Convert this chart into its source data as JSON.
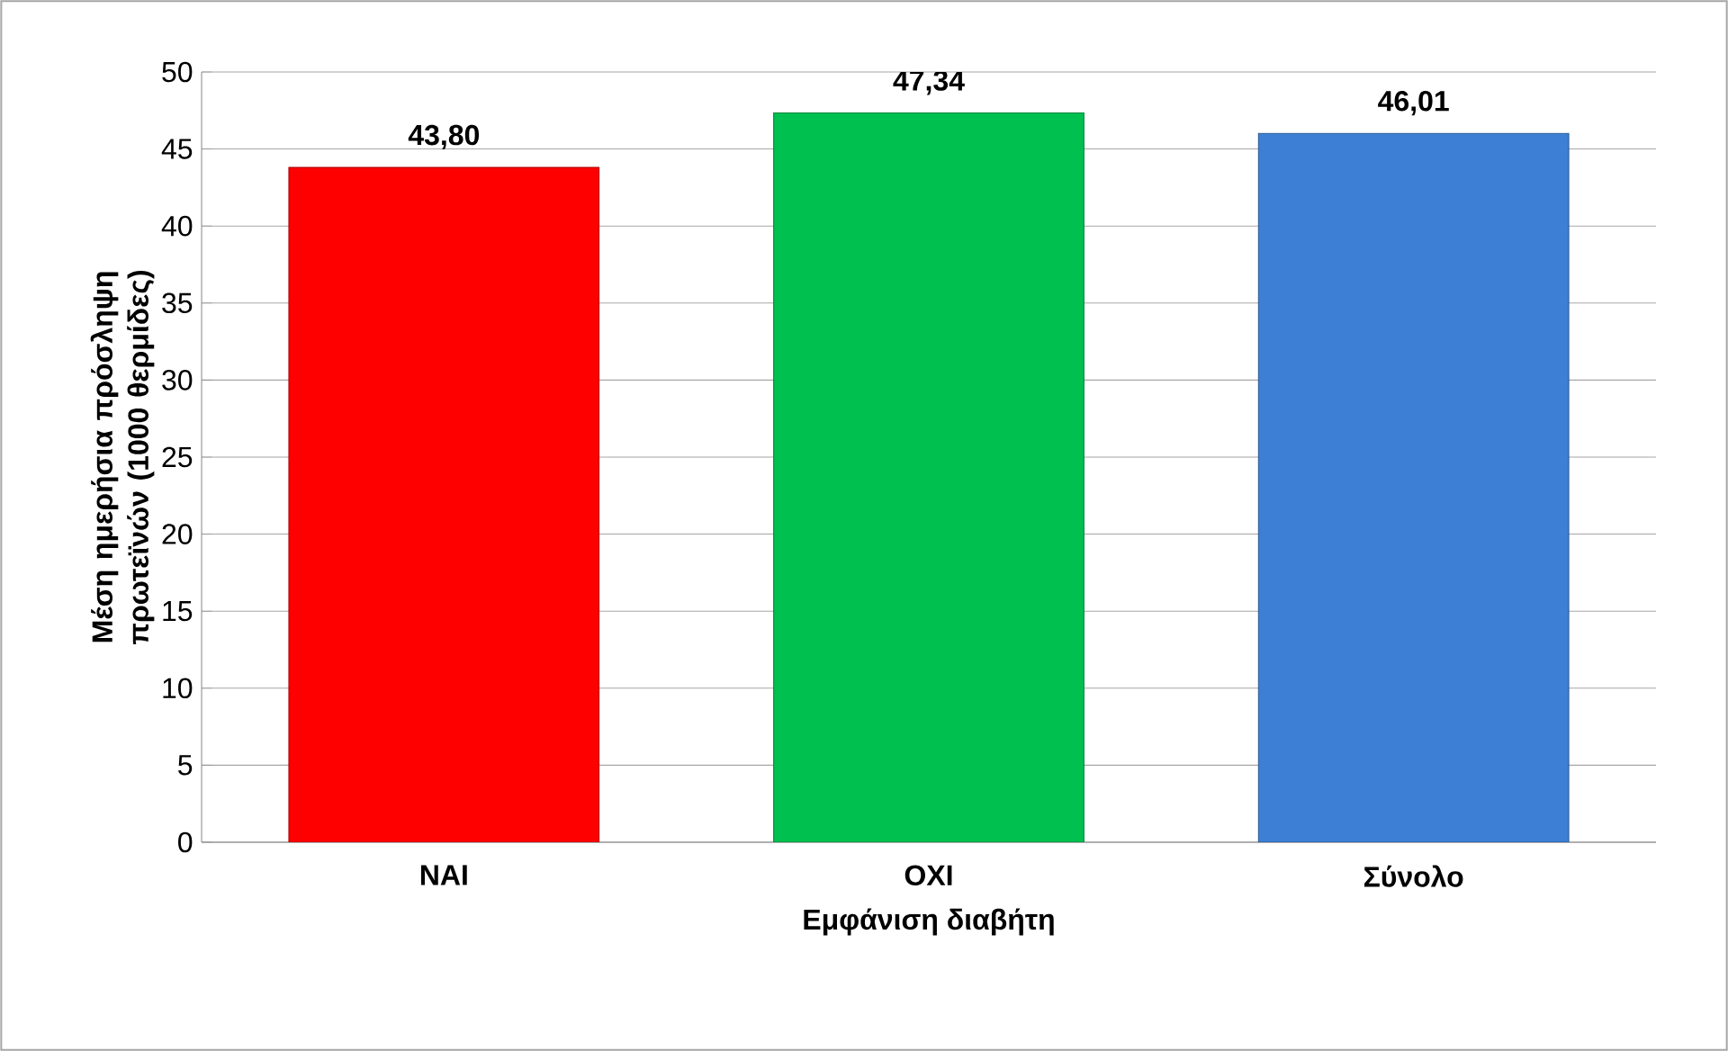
{
  "chart_data": {
    "type": "bar",
    "categories": [
      "ΝΑΙ",
      "ΟΧΙ",
      "Σύνολο"
    ],
    "values": [
      43.8,
      47.34,
      46.01
    ],
    "colors": [
      "#ff0000",
      "#00c050",
      "#3c7fd4"
    ],
    "value_labels": [
      "43,80",
      "47,34",
      "46,01"
    ],
    "xlabel": "Εμφάνιση διαβήτη",
    "ylabel": "Μέση ημερήσια πρόσληψη πρωτεϊνών (1000 θερμίδες)",
    "ylim": [
      0,
      50
    ],
    "yticks": [
      0,
      5,
      10,
      15,
      20,
      25,
      30,
      35,
      40,
      45,
      50
    ],
    "grid": "y"
  }
}
